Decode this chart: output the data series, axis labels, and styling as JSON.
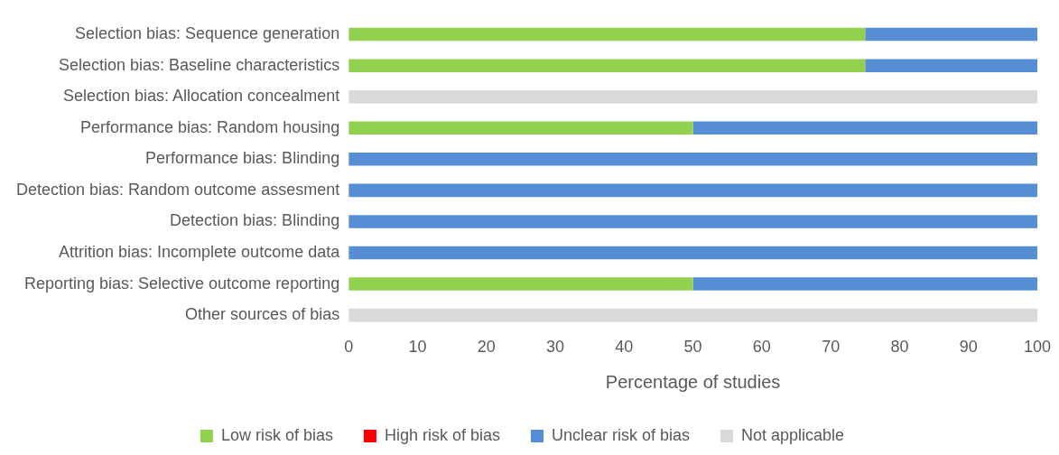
{
  "chart_data": {
    "type": "bar",
    "orientation": "horizontal",
    "stacked": true,
    "xlabel": "Percentage of studies",
    "categories": [
      "Selection bias: Sequence generation",
      "Selection bias: Baseline characteristics",
      "Selection bias: Allocation concealment",
      "Performance bias: Random housing",
      "Performance bias: Blinding",
      "Detection bias: Random outcome assesment",
      "Detection bias: Blinding",
      "Attrition bias: Incomplete outcome data",
      "Reporting bias: Selective outcome reporting",
      "Other sources of bias"
    ],
    "series": [
      {
        "name": "Low risk of bias",
        "color": "#92d050",
        "values": [
          75,
          75,
          0,
          50,
          0,
          0,
          0,
          0,
          50,
          0
        ]
      },
      {
        "name": "High risk of bias",
        "color": "#ff0000",
        "values": [
          0,
          0,
          0,
          0,
          0,
          0,
          0,
          0,
          0,
          0
        ]
      },
      {
        "name": "Unclear risk of bias",
        "color": "#558ed5",
        "values": [
          25,
          25,
          0,
          50,
          100,
          100,
          100,
          100,
          50,
          0
        ]
      },
      {
        "name": "Not applicable",
        "color": "#d9d9d9",
        "values": [
          0,
          0,
          100,
          0,
          0,
          0,
          0,
          0,
          0,
          100
        ]
      }
    ],
    "xlim": [
      0,
      100
    ],
    "xticks": [
      0,
      10,
      20,
      30,
      40,
      50,
      60,
      70,
      80,
      90,
      100
    ],
    "grid": false,
    "legend": "bottom"
  }
}
